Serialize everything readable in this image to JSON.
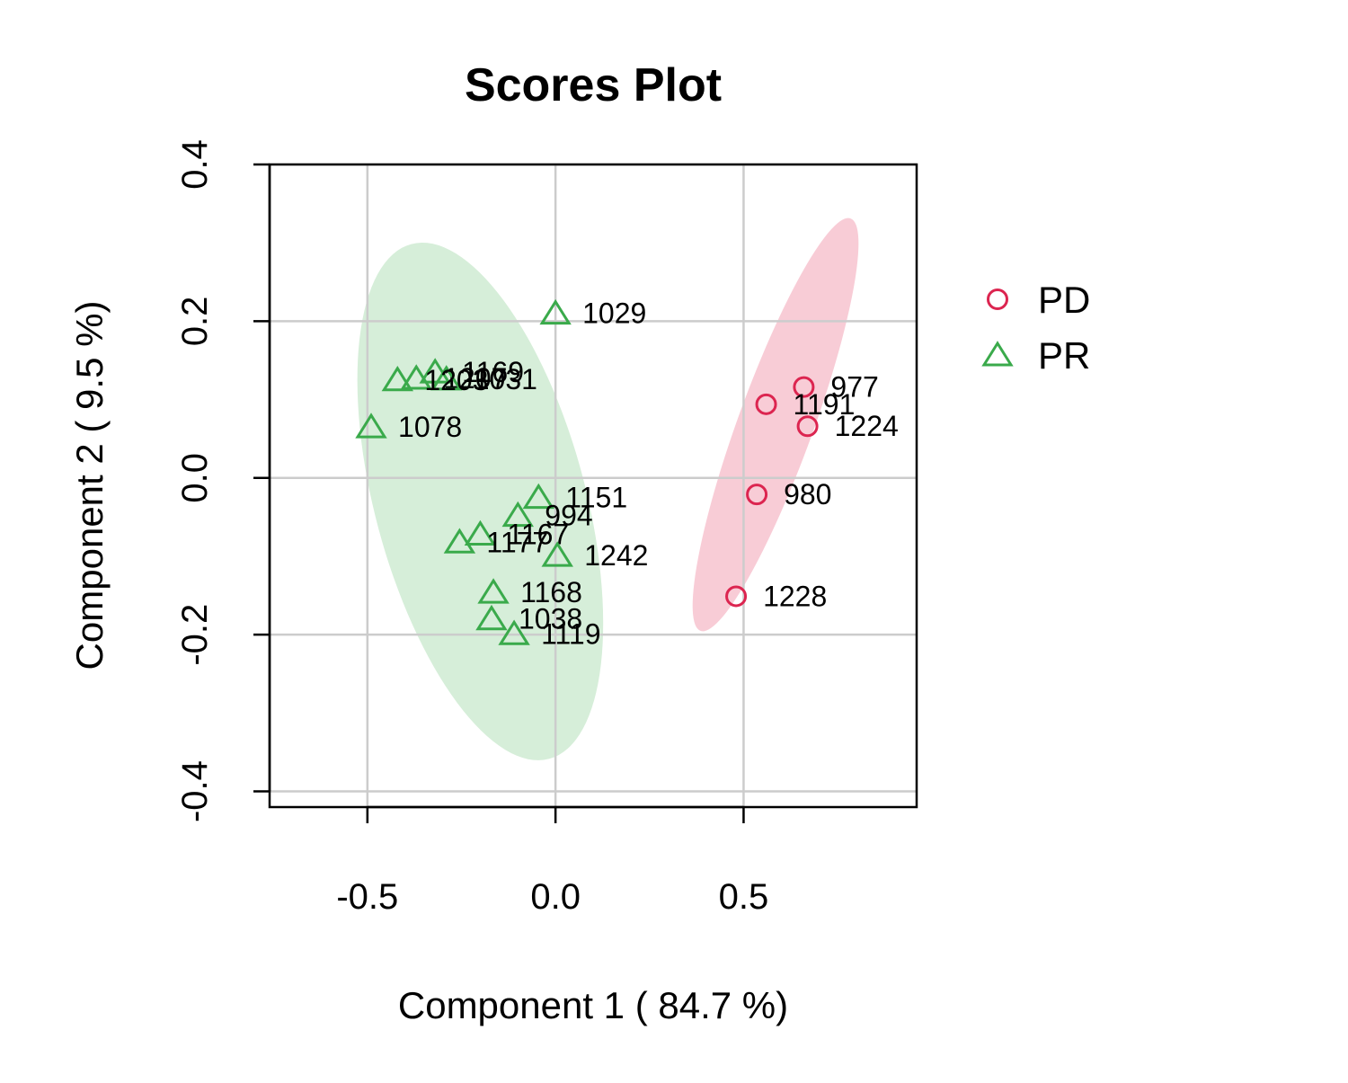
{
  "chart_data": {
    "type": "scatter",
    "title": "Scores Plot",
    "xlabel": "Component 1 ( 84.7 %)",
    "ylabel": "Component 2 ( 9.5 %)",
    "xlim": [
      -0.76,
      0.96
    ],
    "ylim": [
      -0.42,
      0.4
    ],
    "xticks": [
      "-0.5",
      "0.0",
      "0.5"
    ],
    "xtick_values": [
      -0.5,
      0.0,
      0.5
    ],
    "yticks": [
      "-0.4",
      "-0.2",
      "0.0",
      "0.2",
      "0.4"
    ],
    "ytick_values": [
      -0.4,
      -0.2,
      0.0,
      0.2,
      0.4
    ],
    "grid": true,
    "legend_position": "right",
    "series": [
      {
        "name": "PD",
        "marker": "circle",
        "color": "#dc2550",
        "ellipse_fill": "#f8ccd6",
        "points": [
          {
            "label": "977",
            "x": 0.66,
            "y": 0.116
          },
          {
            "label": "1191",
            "x": 0.56,
            "y": 0.094
          },
          {
            "label": "1224",
            "x": 0.67,
            "y": 0.066
          },
          {
            "label": "980",
            "x": 0.535,
            "y": -0.021
          },
          {
            "label": "1228",
            "x": 0.48,
            "y": -0.151
          }
        ]
      },
      {
        "name": "PR",
        "marker": "triangle",
        "color": "#3aaa4b",
        "ellipse_fill": "#d6eed9",
        "points": [
          {
            "label": "1029",
            "x": 0.0,
            "y": 0.21
          },
          {
            "label": "1169",
            "x": -0.32,
            "y": 0.135
          },
          {
            "label": "1207",
            "x": -0.37,
            "y": 0.127
          },
          {
            "label": "1031",
            "x": -0.29,
            "y": 0.126
          },
          {
            "label": "1203",
            "x": -0.42,
            "y": 0.125
          },
          {
            "label": "1078",
            "x": -0.49,
            "y": 0.065
          },
          {
            "label": "1151",
            "x": -0.045,
            "y": -0.025
          },
          {
            "label": "994",
            "x": -0.1,
            "y": -0.048
          },
          {
            "label": "1167",
            "x": -0.2,
            "y": -0.072
          },
          {
            "label": "1177",
            "x": -0.255,
            "y": -0.082
          },
          {
            "label": "1242",
            "x": 0.005,
            "y": -0.099
          },
          {
            "label": "1168",
            "x": -0.165,
            "y": -0.146
          },
          {
            "label": "1038",
            "x": -0.17,
            "y": -0.18
          },
          {
            "label": "1119",
            "x": -0.11,
            "y": -0.199
          }
        ]
      }
    ],
    "ellipses": [
      {
        "series": "PD",
        "cx": 0.585,
        "cy": 0.068,
        "rx": 0.1,
        "ry": 0.28,
        "angle_deg": 20
      },
      {
        "series": "PR",
        "cx": -0.2,
        "cy": -0.03,
        "rx": 0.28,
        "ry": 0.34,
        "angle_deg": -15
      }
    ]
  }
}
